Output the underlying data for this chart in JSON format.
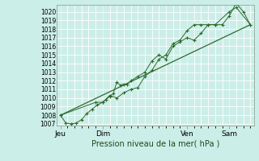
{
  "title": "",
  "xlabel": "Pression niveau de la mer( hPa )",
  "ylabel": "",
  "bg_color": "#cceee8",
  "grid_color": "#ffffff",
  "line_color": "#2d6a2d",
  "ylim_min": 1007,
  "ylim_max": 1020.5,
  "yticks": [
    1007,
    1008,
    1009,
    1010,
    1011,
    1012,
    1013,
    1014,
    1015,
    1016,
    1017,
    1018,
    1019,
    1020
  ],
  "xtick_labels": [
    "Jeu",
    "Dim",
    "Ven",
    "Sam"
  ],
  "xtick_positions": [
    0,
    24,
    72,
    96
  ],
  "vline_positions": [
    0,
    24,
    72,
    96
  ],
  "xmin": -2,
  "xmax": 110,
  "series1": [
    [
      0,
      1008.0
    ],
    [
      3,
      1007.1
    ],
    [
      6,
      1007.0
    ],
    [
      9,
      1007.1
    ],
    [
      12,
      1007.5
    ],
    [
      15,
      1008.2
    ],
    [
      18,
      1008.7
    ],
    [
      21,
      1009.2
    ],
    [
      24,
      1009.5
    ],
    [
      26,
      1009.8
    ],
    [
      28,
      1010.2
    ],
    [
      30,
      1010.5
    ],
    [
      32,
      1011.8
    ],
    [
      34,
      1011.5
    ],
    [
      36,
      1011.6
    ],
    [
      38,
      1011.6
    ],
    [
      40,
      1012.0
    ],
    [
      44,
      1012.5
    ],
    [
      48,
      1013.0
    ],
    [
      52,
      1014.3
    ],
    [
      56,
      1015.0
    ],
    [
      60,
      1014.5
    ],
    [
      64,
      1016.0
    ],
    [
      68,
      1016.5
    ],
    [
      72,
      1017.0
    ],
    [
      76,
      1016.7
    ],
    [
      80,
      1017.5
    ],
    [
      84,
      1018.5
    ],
    [
      88,
      1018.5
    ],
    [
      92,
      1018.5
    ],
    [
      96,
      1019.5
    ],
    [
      100,
      1021.0
    ],
    [
      104,
      1020.0
    ],
    [
      108,
      1018.5
    ]
  ],
  "series2": [
    [
      0,
      1008.0
    ],
    [
      108,
      1018.5
    ]
  ],
  "series3": [
    [
      0,
      1008.0
    ],
    [
      20,
      1009.5
    ],
    [
      24,
      1009.5
    ],
    [
      28,
      1010.3
    ],
    [
      32,
      1010.0
    ],
    [
      36,
      1010.6
    ],
    [
      40,
      1011.0
    ],
    [
      44,
      1011.2
    ],
    [
      48,
      1012.5
    ],
    [
      52,
      1013.2
    ],
    [
      56,
      1014.5
    ],
    [
      60,
      1015.0
    ],
    [
      64,
      1016.3
    ],
    [
      68,
      1016.7
    ],
    [
      72,
      1017.8
    ],
    [
      76,
      1018.5
    ],
    [
      80,
      1018.5
    ],
    [
      84,
      1018.5
    ],
    [
      88,
      1018.5
    ],
    [
      96,
      1020.0
    ],
    [
      100,
      1020.5
    ],
    [
      108,
      1018.5
    ]
  ]
}
